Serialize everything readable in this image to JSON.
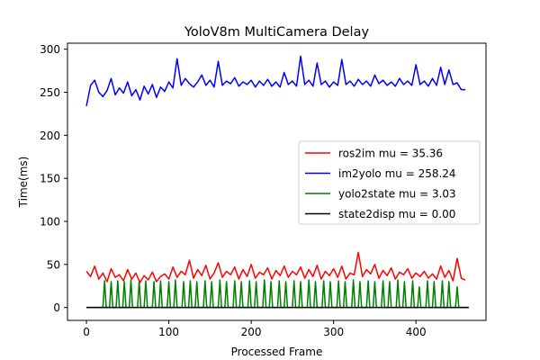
{
  "chart_data": {
    "type": "line",
    "title": "YoloV8m MultiCamera Delay",
    "xlabel": "Processed Frame",
    "ylabel": "Time(ms)",
    "xlim": [
      -23,
      485
    ],
    "ylim": [
      -15,
      307
    ],
    "xticks": [
      0,
      100,
      200,
      300,
      400
    ],
    "yticks": [
      0,
      50,
      100,
      150,
      200,
      250,
      300
    ],
    "grid": false,
    "legend_position": "center-right",
    "series": [
      {
        "name": "ros2im mu = 35.36",
        "color": "#ff0000",
        "x": [
          0,
          5,
          10,
          15,
          20,
          25,
          30,
          35,
          40,
          45,
          50,
          55,
          60,
          65,
          70,
          75,
          80,
          85,
          90,
          95,
          100,
          105,
          110,
          115,
          120,
          125,
          130,
          135,
          140,
          145,
          150,
          155,
          160,
          165,
          170,
          175,
          180,
          185,
          190,
          195,
          200,
          205,
          210,
          215,
          220,
          225,
          230,
          235,
          240,
          245,
          250,
          255,
          260,
          265,
          270,
          275,
          280,
          285,
          290,
          295,
          300,
          305,
          310,
          315,
          320,
          325,
          330,
          335,
          340,
          345,
          350,
          355,
          360,
          365,
          370,
          375,
          380,
          385,
          390,
          395,
          400,
          405,
          410,
          415,
          420,
          425,
          430,
          435,
          440,
          445,
          450,
          455,
          460
        ],
        "y": [
          42,
          36,
          48,
          33,
          40,
          30,
          45,
          35,
          38,
          31,
          44,
          33,
          40,
          29,
          37,
          32,
          41,
          30,
          36,
          39,
          33,
          47,
          35,
          42,
          38,
          55,
          34,
          44,
          37,
          49,
          33,
          40,
          52,
          35,
          42,
          38,
          47,
          33,
          44,
          36,
          50,
          34,
          41,
          38,
          46,
          33,
          43,
          37,
          48,
          35,
          42,
          38,
          47,
          34,
          44,
          36,
          49,
          33,
          42,
          37,
          45,
          35,
          48,
          33,
          40,
          38,
          64,
          36,
          44,
          39,
          50,
          34,
          43,
          37,
          46,
          33,
          41,
          38,
          45,
          34,
          40,
          36,
          42,
          34,
          39,
          33,
          48,
          35,
          43,
          31,
          57,
          34,
          32
        ]
      },
      {
        "name": "im2yolo mu = 258.24",
        "color": "#0000ff",
        "x": [
          0,
          5,
          10,
          15,
          20,
          25,
          30,
          35,
          40,
          45,
          50,
          55,
          60,
          65,
          70,
          75,
          80,
          85,
          90,
          95,
          100,
          105,
          110,
          115,
          120,
          125,
          130,
          135,
          140,
          145,
          150,
          155,
          160,
          165,
          170,
          175,
          180,
          185,
          190,
          195,
          200,
          205,
          210,
          215,
          220,
          225,
          230,
          235,
          240,
          245,
          250,
          255,
          260,
          265,
          270,
          275,
          280,
          285,
          290,
          295,
          300,
          305,
          310,
          315,
          320,
          325,
          330,
          335,
          340,
          345,
          350,
          355,
          360,
          365,
          370,
          375,
          380,
          385,
          390,
          395,
          400,
          405,
          410,
          415,
          420,
          425,
          430,
          435,
          440,
          445,
          450,
          455,
          460
        ],
        "y": [
          234,
          258,
          264,
          250,
          245,
          252,
          266,
          247,
          255,
          249,
          262,
          246,
          253,
          241,
          257,
          248,
          259,
          244,
          256,
          251,
          262,
          255,
          289,
          258,
          266,
          260,
          256,
          262,
          270,
          258,
          264,
          256,
          286,
          258,
          263,
          260,
          267,
          257,
          262,
          259,
          264,
          256,
          263,
          258,
          265,
          257,
          262,
          256,
          273,
          259,
          263,
          257,
          292,
          259,
          264,
          257,
          284,
          259,
          263,
          256,
          262,
          258,
          288,
          259,
          263,
          257,
          265,
          259,
          263,
          257,
          270,
          260,
          264,
          258,
          262,
          257,
          266,
          259,
          263,
          258,
          282,
          259,
          263,
          257,
          266,
          258,
          279,
          259,
          276,
          259,
          261,
          253,
          253
        ]
      },
      {
        "name": "yolo2state mu = 3.03",
        "color": "#008000",
        "x": [
          0,
          20,
          22,
          24,
          28,
          30,
          32,
          36,
          38,
          40,
          44,
          46,
          48,
          52,
          54,
          56,
          62,
          64,
          66,
          70,
          72,
          74,
          80,
          82,
          84,
          88,
          90,
          92,
          98,
          100,
          102,
          106,
          108,
          110,
          116,
          118,
          120,
          124,
          126,
          128,
          132,
          134,
          136,
          142,
          144,
          146,
          150,
          152,
          154,
          160,
          162,
          164,
          168,
          170,
          172,
          178,
          180,
          182,
          186,
          188,
          190,
          196,
          198,
          200,
          204,
          206,
          208,
          214,
          216,
          218,
          222,
          224,
          226,
          232,
          234,
          236,
          240,
          242,
          244,
          250,
          252,
          254,
          258,
          260,
          262,
          268,
          270,
          272,
          276,
          278,
          280,
          286,
          288,
          290,
          294,
          296,
          298,
          304,
          306,
          308,
          312,
          314,
          316,
          322,
          324,
          326,
          330,
          332,
          334,
          340,
          342,
          344,
          348,
          350,
          352,
          358,
          360,
          362,
          366,
          368,
          370,
          376,
          378,
          380,
          384,
          386,
          388,
          394,
          396,
          398,
          402,
          404,
          406,
          412,
          414,
          416,
          420,
          422,
          424,
          430,
          432,
          434,
          438,
          440,
          442,
          448,
          450,
          452,
          464
        ],
        "y": [
          0,
          0,
          31,
          0,
          0,
          30,
          0,
          0,
          31,
          0,
          0,
          30,
          0,
          0,
          32,
          0,
          0,
          30,
          0,
          0,
          31,
          0,
          0,
          30,
          0,
          0,
          31,
          0,
          0,
          30,
          0,
          0,
          32,
          0,
          0,
          30,
          0,
          0,
          31,
          0,
          0,
          30,
          0,
          0,
          31,
          0,
          0,
          30,
          0,
          0,
          32,
          0,
          0,
          30,
          0,
          0,
          31,
          0,
          0,
          30,
          0,
          0,
          31,
          0,
          0,
          30,
          0,
          0,
          32,
          0,
          0,
          30,
          0,
          0,
          31,
          0,
          0,
          30,
          0,
          0,
          31,
          0,
          0,
          30,
          0,
          0,
          32,
          0,
          0,
          30,
          0,
          0,
          31,
          0,
          0,
          30,
          0,
          0,
          31,
          0,
          0,
          30,
          0,
          0,
          32,
          0,
          0,
          30,
          0,
          0,
          31,
          0,
          0,
          30,
          0,
          0,
          31,
          0,
          0,
          30,
          0,
          0,
          32,
          0,
          0,
          30,
          0,
          0,
          31,
          0,
          0,
          24,
          0,
          0,
          31,
          0,
          0,
          30,
          0,
          0,
          31,
          0,
          0,
          30,
          0,
          0,
          24,
          0,
          0
        ]
      },
      {
        "name": "state2disp mu = 0.00",
        "color": "#000000",
        "x": [
          0,
          464
        ],
        "y": [
          0,
          0
        ]
      }
    ]
  }
}
